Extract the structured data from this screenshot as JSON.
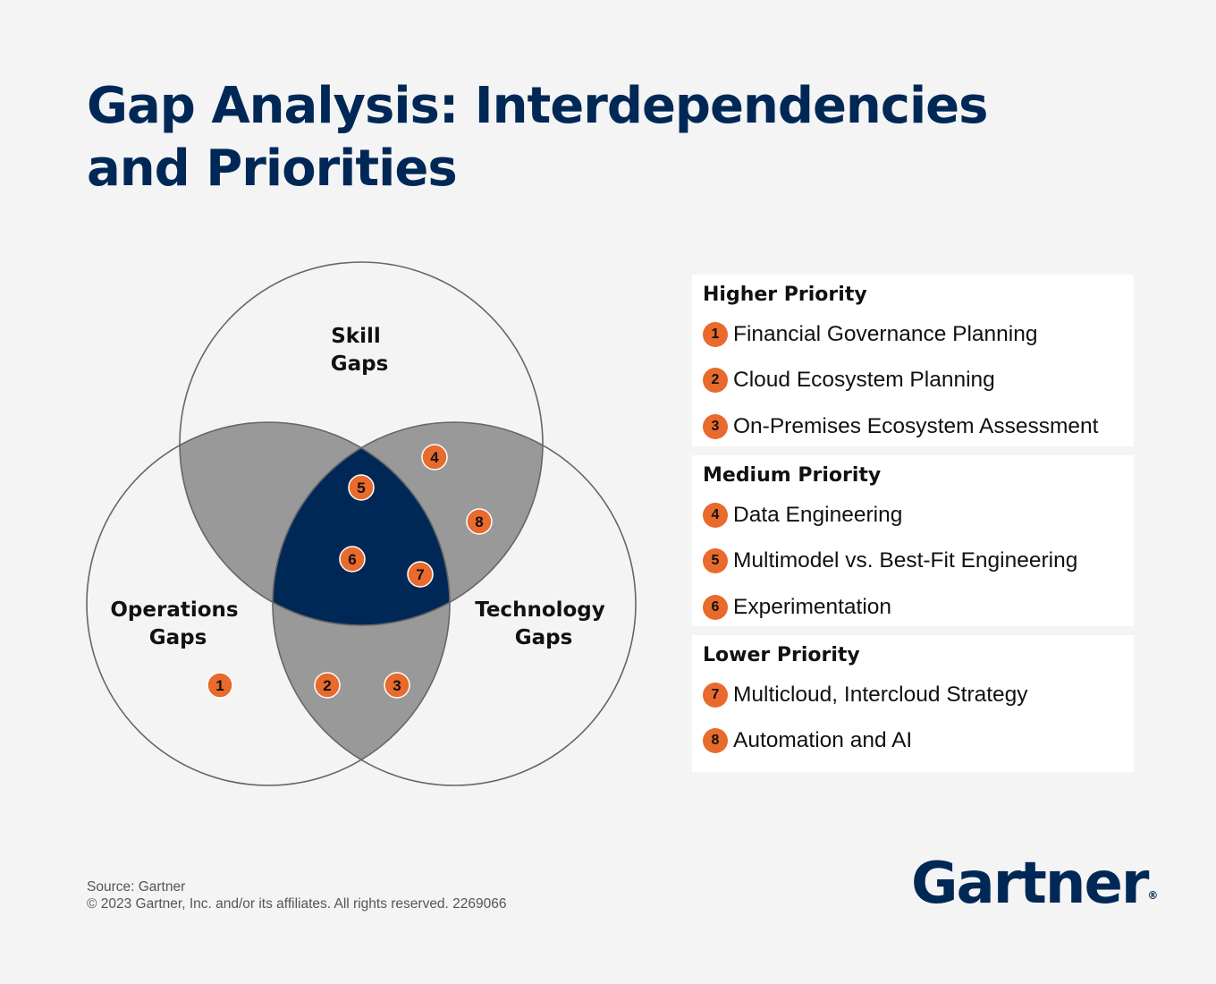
{
  "title": {
    "line1": "Gap Analysis: Interdependencies",
    "line2": "and Priorities"
  },
  "diagram": {
    "sets": [
      {
        "id": "skill",
        "line1": "Skill",
        "line2": "Gaps"
      },
      {
        "id": "operations",
        "line1": "Operations",
        "line2": "Gaps"
      },
      {
        "id": "technology",
        "line1": "Technology",
        "line2": "Gaps"
      }
    ],
    "placements": [
      {
        "number": "1",
        "sets": [
          "operations"
        ]
      },
      {
        "number": "2",
        "sets": [
          "operations",
          "technology"
        ]
      },
      {
        "number": "3",
        "sets": [
          "operations",
          "technology"
        ]
      },
      {
        "number": "4",
        "sets": [
          "skill",
          "technology"
        ]
      },
      {
        "number": "5",
        "sets": [
          "skill",
          "operations",
          "technology"
        ]
      },
      {
        "number": "6",
        "sets": [
          "skill",
          "operations",
          "technology"
        ]
      },
      {
        "number": "7",
        "sets": [
          "skill",
          "operations",
          "technology"
        ]
      },
      {
        "number": "8",
        "sets": [
          "skill",
          "technology"
        ]
      }
    ],
    "colors": {
      "pair_overlap": "#999999",
      "triple_overlap": "#002856",
      "badge": "#e86a2c",
      "outline": "#666666"
    }
  },
  "legend": {
    "high": {
      "heading": "Higher Priority",
      "items": [
        {
          "number": "1",
          "label": "Financial Governance Planning"
        },
        {
          "number": "2",
          "label": "Cloud Ecosystem Planning"
        },
        {
          "number": "3",
          "label": "On-Premises Ecosystem Assessment"
        }
      ]
    },
    "medium": {
      "heading": "Medium Priority",
      "items": [
        {
          "number": "4",
          "label": "Data Engineering"
        },
        {
          "number": "5",
          "label": "Multimodel vs. Best-Fit Engineering"
        },
        {
          "number": "6",
          "label": "Experimentation"
        }
      ]
    },
    "low": {
      "heading": "Lower Priority",
      "items": [
        {
          "number": "7",
          "label": "Multicloud, Intercloud Strategy"
        },
        {
          "number": "8",
          "label": "Automation and AI"
        }
      ]
    }
  },
  "footer": {
    "source": "Source: Gartner",
    "copyright": "© 2023 Gartner, Inc. and/or its affiliates. All rights reserved. 2269066"
  },
  "logo": {
    "text": "Gartner",
    "mark": "®"
  }
}
